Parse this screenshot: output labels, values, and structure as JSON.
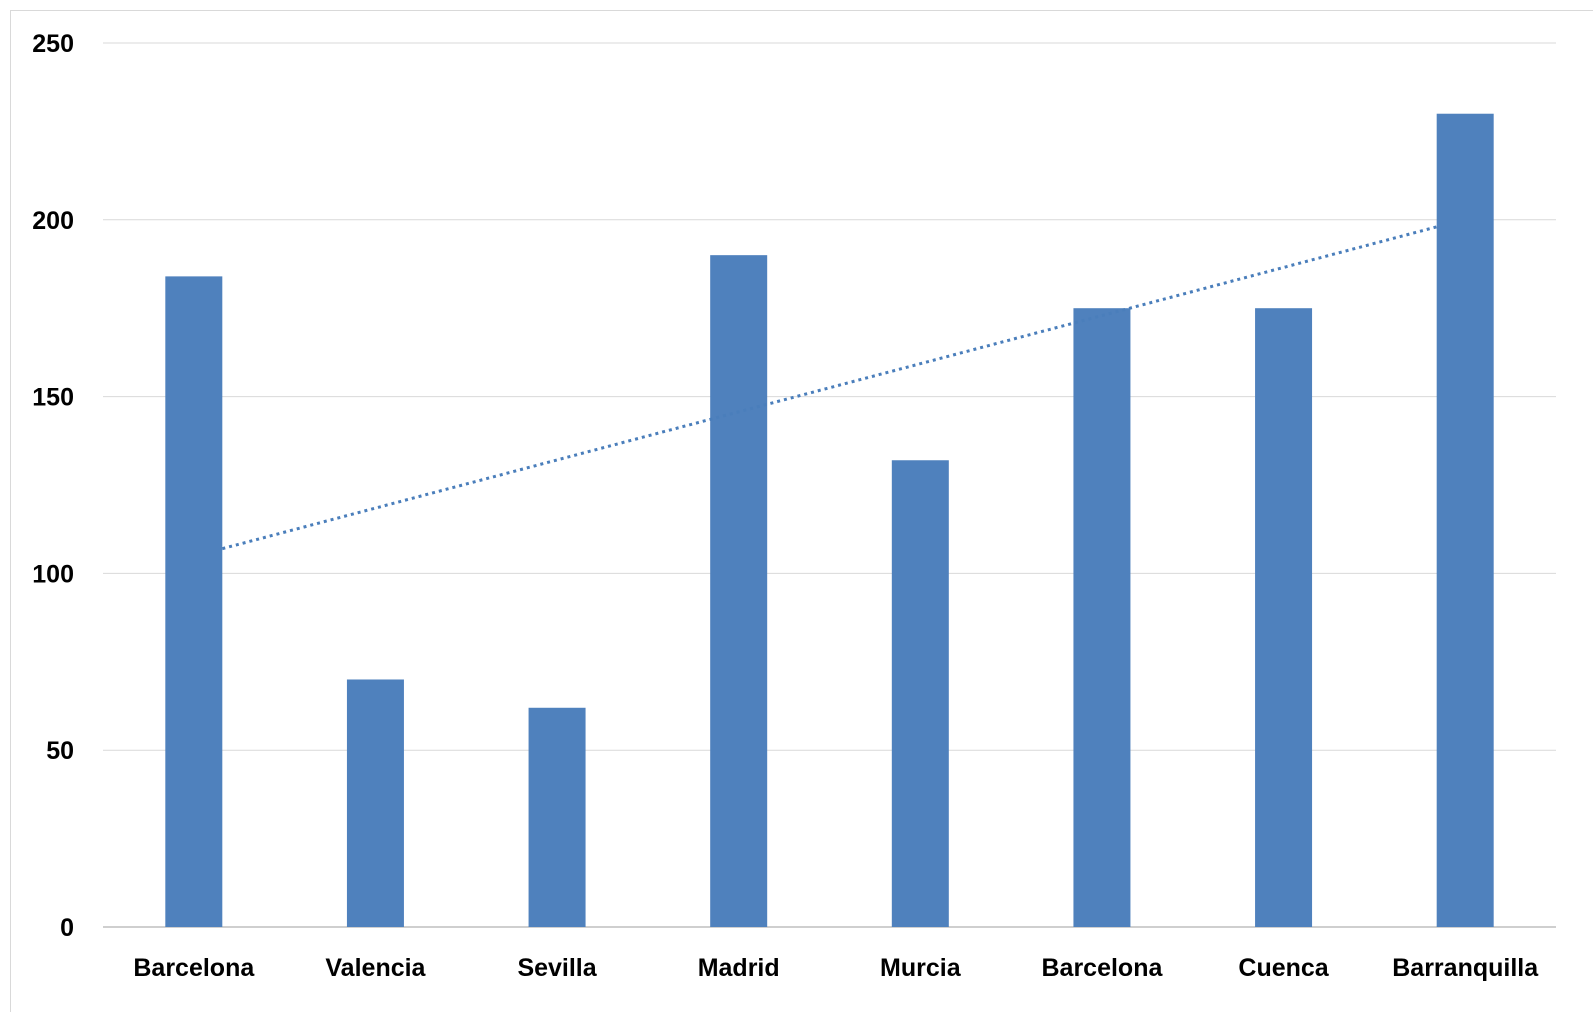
{
  "chart_data": {
    "type": "bar",
    "categories": [
      "Barcelona",
      "Valencia",
      "Sevilla",
      "Madrid",
      "Murcia",
      "Barcelona",
      "Cuenca",
      "Barranquilla"
    ],
    "series": [
      {
        "values": [
          184,
          70,
          62,
          190,
          132,
          175,
          175,
          230
        ]
      }
    ],
    "trendline": {
      "type": "linear",
      "style": "dotted",
      "start_value": 107,
      "end_value": 198
    },
    "ylim": [
      0,
      250
    ],
    "yticks": [
      0,
      50,
      100,
      150,
      200,
      250
    ],
    "title": "",
    "xlabel": "",
    "ylabel": "",
    "grid": true,
    "legend": "none",
    "colors": {
      "bar": "#4f81bd",
      "trendline": "#4a7ebb",
      "gridline": "#d9d9d9",
      "axis": "#bfbfbf"
    }
  }
}
